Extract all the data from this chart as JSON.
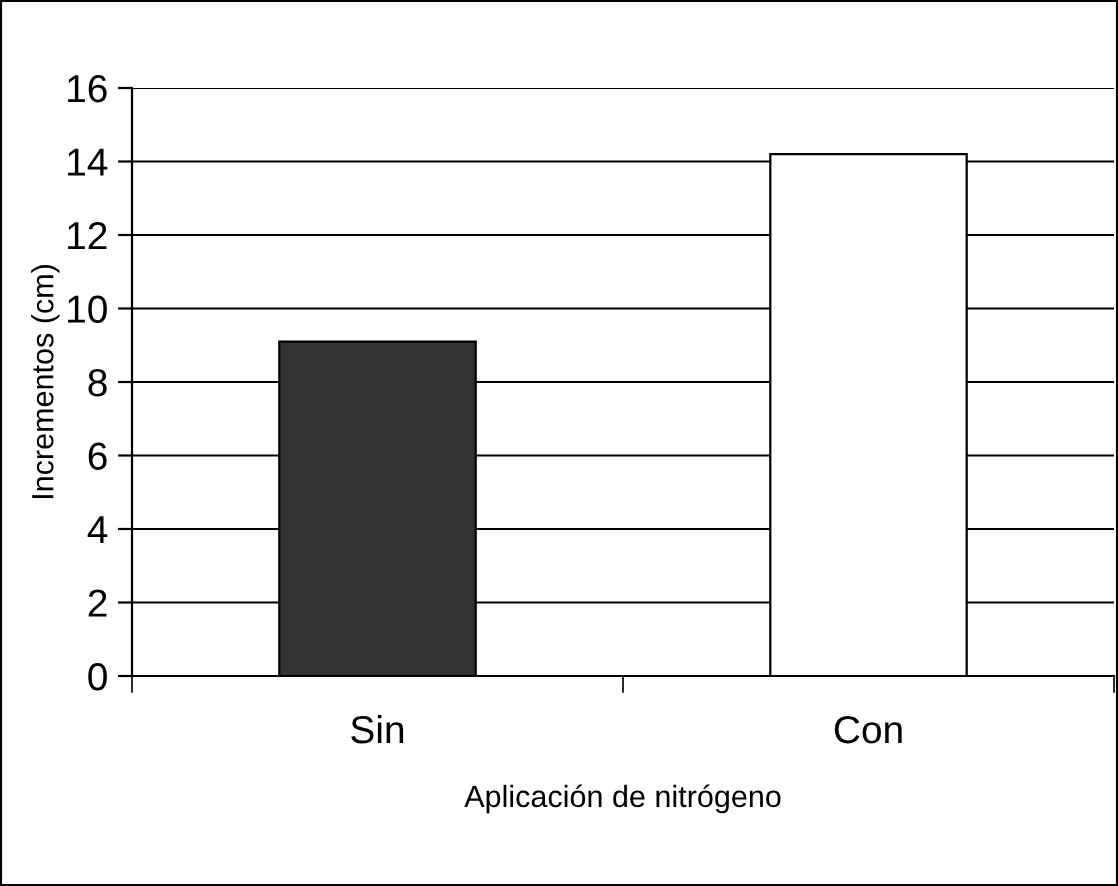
{
  "chart_data": {
    "type": "bar",
    "xlabel": "Aplicación de nitrógeno",
    "ylabel": "Incrementos (cm)",
    "categories": [
      "Sin",
      "Con"
    ],
    "series": [
      {
        "values": [
          9.1,
          14.2
        ],
        "colors": [
          "#333333",
          "#ffffff"
        ]
      }
    ],
    "ylim": [
      0,
      16
    ],
    "yticks": [
      0,
      2,
      4,
      6,
      8,
      10,
      12,
      14,
      16
    ],
    "grid": "y",
    "legend": false
  }
}
